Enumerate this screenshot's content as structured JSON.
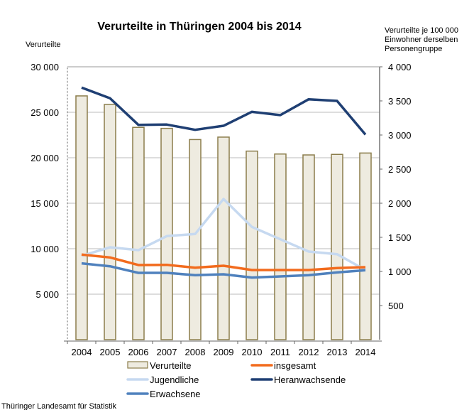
{
  "chart_data": {
    "type": "bar+line",
    "title": "Verurteilte in Thüringen 2004 bis 2014",
    "ylabel_left": "Verurteilte",
    "ylabel_right": [
      "Verurteilte je 100 000",
      "Einwohner  derselben",
      "Personengruppe"
    ],
    "categories": [
      "2004",
      "2005",
      "2006",
      "2007",
      "2008",
      "2009",
      "2010",
      "2011",
      "2012",
      "2013",
      "2014"
    ],
    "ylim_left": [
      0,
      30000
    ],
    "yticks_left": [
      "5 000",
      "10 000",
      "15 000",
      "20 000",
      "25 000",
      "30 000"
    ],
    "ylim_right": [
      0,
      4000
    ],
    "yticks_right": [
      "500",
      "1 000",
      "1 500",
      "2 000",
      "2 500",
      "3 000",
      "3 500",
      "4 000"
    ],
    "grid": true,
    "legend_position": "bottom",
    "bars": {
      "name": "Verurteilte",
      "axis": "left",
      "color": "#EEEBE0",
      "edge": "#8B7D4B",
      "values": [
        26800,
        25860,
        23340,
        23230,
        22000,
        22270,
        20730,
        20410,
        20310,
        20370,
        20520
      ]
    },
    "series": [
      {
        "name": "insgesamt",
        "axis": "right",
        "color": "#F26B1D",
        "values": [
          1247,
          1205,
          1094,
          1097,
          1055,
          1083,
          1021,
          1021,
          1021,
          1049,
          1063
        ]
      },
      {
        "name": "Jugendliche",
        "axis": "right",
        "color": "#C6D9F0",
        "values": [
          1229,
          1354,
          1312,
          1518,
          1549,
          2062,
          1653,
          1472,
          1292,
          1253,
          1021
        ]
      },
      {
        "name": "Heranwachsende",
        "axis": "right",
        "color": "#1F3F73",
        "values": [
          3695,
          3539,
          3149,
          3153,
          3076,
          3135,
          3340,
          3292,
          3524,
          3500,
          3007
        ]
      },
      {
        "name": "Erwachsene",
        "axis": "right",
        "color": "#4F81BD",
        "values": [
          1118,
          1076,
          979,
          979,
          945,
          958,
          910,
          927,
          945,
          986,
          1018
        ]
      }
    ]
  },
  "footer": "Thüringer Landesamt für Statistik"
}
